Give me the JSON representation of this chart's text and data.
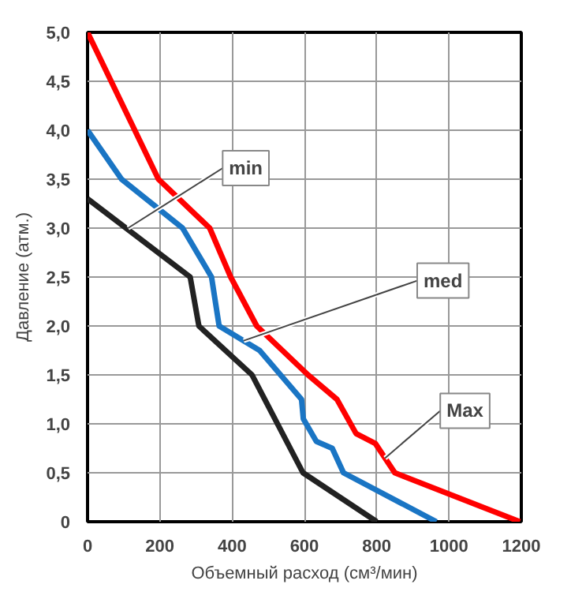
{
  "chart_data": {
    "type": "line",
    "xlabel": "Объемный расход (см³/мин)",
    "ylabel": "Давление (атм.)",
    "xlim": [
      0,
      1200
    ],
    "xticks": [
      0,
      200,
      400,
      600,
      800,
      1000,
      1200
    ],
    "ylim": [
      0,
      5
    ],
    "yticks": [
      {
        "value": 0,
        "label": "0"
      },
      {
        "value": 0.5,
        "label": "0,5"
      },
      {
        "value": 1,
        "label": "1,0"
      },
      {
        "value": 1.5,
        "label": "1,5"
      },
      {
        "value": 2,
        "label": "2,0"
      },
      {
        "value": 2.5,
        "label": "2,5"
      },
      {
        "value": 3,
        "label": "3,0"
      },
      {
        "value": 3.5,
        "label": "3,5"
      },
      {
        "value": 4,
        "label": "4,0"
      },
      {
        "value": 4.5,
        "label": "4,5"
      },
      {
        "value": 5,
        "label": "5,0"
      }
    ],
    "grid": true,
    "line_style": "solid",
    "marker": "none",
    "series": [
      {
        "color": "#ff0000",
        "x": [
          0,
          196,
          338,
          396,
          468,
          610,
          690,
          743,
          796,
          850,
          1196
        ],
        "values": [
          5.0,
          3.5,
          3.0,
          2.5,
          2.0,
          1.5,
          1.25,
          0.9,
          0.8,
          0.5,
          0
        ]
      },
      {
        "color": "#1a75c4",
        "x": [
          0,
          94,
          263,
          343,
          364,
          476,
          592,
          597,
          633,
          677,
          708,
          965
        ],
        "values": [
          4.0,
          3.5,
          3.0,
          2.5,
          2.0,
          1.75,
          1.25,
          1.05,
          0.82,
          0.75,
          0.5,
          0
        ]
      },
      {
        "color": "#222222",
        "x": [
          0,
          284,
          308,
          455,
          596,
          800
        ],
        "values": [
          3.3,
          2.5,
          2.0,
          1.5,
          0.5,
          0
        ]
      }
    ],
    "annotations": [
      {
        "text": "min",
        "x": 112,
        "y": 3.0
      },
      {
        "text": "med",
        "x": 432,
        "y": 1.85
      },
      {
        "text": "Max",
        "x": 823,
        "y": 0.65
      }
    ]
  }
}
